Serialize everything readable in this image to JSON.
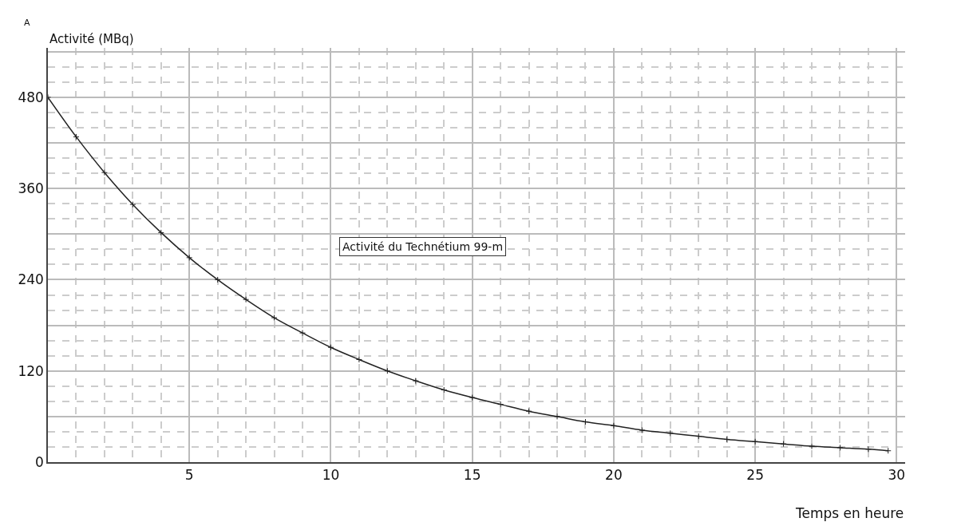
{
  "chart_data": {
    "type": "line",
    "xlabel": "Temps en heure",
    "ylabel": "Activité (MBq)",
    "annotations": [
      "A",
      "Activité du Technétium 99-m"
    ],
    "x": [
      0,
      1,
      2,
      3,
      4,
      5,
      6,
      7,
      8,
      9,
      10,
      11,
      12,
      13,
      14,
      15,
      16,
      17,
      18,
      19,
      20,
      21,
      22,
      23,
      24,
      25,
      26,
      27,
      28,
      29,
      29.7
    ],
    "series": [
      {
        "color": "#222222",
        "values": [
          480,
          428,
          381,
          339,
          302,
          269,
          240,
          214,
          190,
          170,
          151,
          135,
          120,
          107,
          95,
          85,
          76,
          67,
          60,
          53,
          48,
          42,
          38,
          34,
          30,
          27,
          24,
          21,
          19,
          17,
          15
        ]
      }
    ],
    "xlim": [
      0,
      30.3
    ],
    "ylim": [
      0,
      545
    ],
    "xticks": [
      5,
      10,
      15,
      20,
      25,
      30
    ],
    "yticks": [
      0,
      {
        "value": 60,
        "label": null
      },
      120,
      {
        "value": 180,
        "label": null
      },
      240,
      {
        "value": 300,
        "label": null
      },
      360,
      {
        "value": 420,
        "label": null
      },
      480,
      {
        "value": 540,
        "label": null
      }
    ],
    "grid": true,
    "marker": "cross",
    "line_style": "solid"
  }
}
